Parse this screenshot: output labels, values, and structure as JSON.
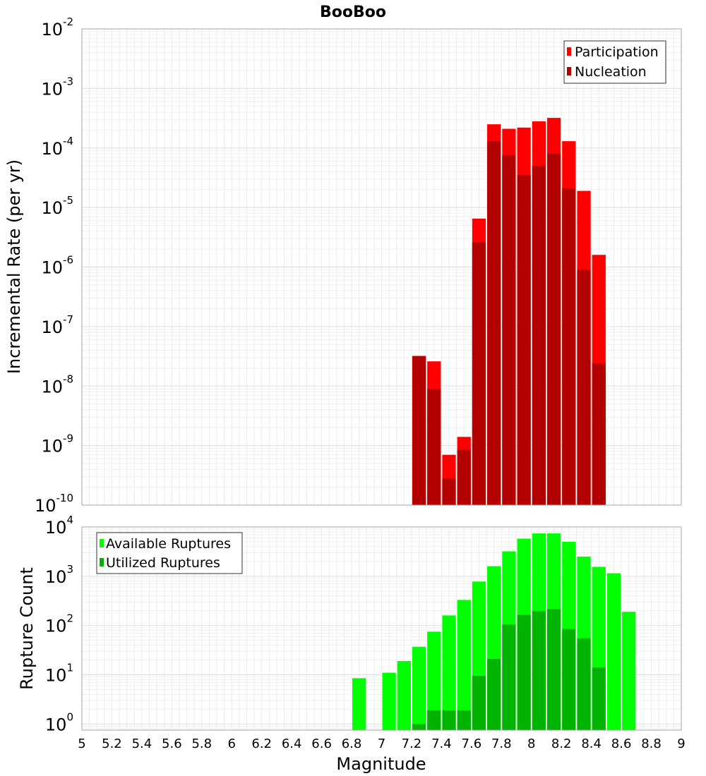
{
  "chart_data": [
    {
      "type": "bar",
      "title": "BooBoo",
      "xlabel": "",
      "ylabel": "Incremental Rate (per yr)",
      "yscale": "log",
      "xlim": [
        5,
        9
      ],
      "ylim": [
        1e-10,
        0.01
      ],
      "bar_width": 0.1,
      "legend_position": "top-right",
      "grid": true,
      "ytick_labels": [
        {
          "base": "10",
          "exp": "-10",
          "value": 1e-10
        },
        {
          "base": "10",
          "exp": "-9",
          "value": 1e-09
        },
        {
          "base": "10",
          "exp": "-8",
          "value": 1e-08
        },
        {
          "base": "10",
          "exp": "-7",
          "value": 1e-07
        },
        {
          "base": "10",
          "exp": "-6",
          "value": 1e-06
        },
        {
          "base": "10",
          "exp": "-5",
          "value": 1e-05
        },
        {
          "base": "10",
          "exp": "-4",
          "value": 0.0001
        },
        {
          "base": "10",
          "exp": "-3",
          "value": 0.001
        },
        {
          "base": "10",
          "exp": "-2",
          "value": 0.01
        }
      ],
      "x": [
        7.25,
        7.35,
        7.45,
        7.55,
        7.65,
        7.75,
        7.85,
        7.95,
        8.05,
        8.15,
        8.25,
        8.35,
        8.45
      ],
      "series": [
        {
          "name": "Participation",
          "color": "#ff0000",
          "values": [
            3.2e-08,
            2.6e-08,
            7e-10,
            1.4e-09,
            6.5e-06,
            0.00025,
            0.00021,
            0.00022,
            0.00028,
            0.00032,
            0.00013,
            1.9e-05,
            1.6e-06
          ]
        },
        {
          "name": "Nucleation",
          "color": "#b30000",
          "values": [
            3.2e-08,
            9e-09,
            2.8e-10,
            8.5e-10,
            2.6e-06,
            0.00013,
            7.5e-05,
            3.5e-05,
            5e-05,
            8e-05,
            2.1e-05,
            9e-07,
            2.4e-08
          ]
        }
      ]
    },
    {
      "type": "bar",
      "title": "",
      "xlabel": "Magnitude",
      "ylabel": "Rupture Count",
      "yscale": "log",
      "xlim": [
        5,
        9
      ],
      "ylim": [
        0.75,
        10000
      ],
      "bar_width": 0.1,
      "legend_position": "top-left",
      "grid": true,
      "ytick_labels": [
        {
          "base": "10",
          "exp": "0",
          "value": 1
        },
        {
          "base": "10",
          "exp": "1",
          "value": 10
        },
        {
          "base": "10",
          "exp": "2",
          "value": 100
        },
        {
          "base": "10",
          "exp": "3",
          "value": 1000
        },
        {
          "base": "10",
          "exp": "4",
          "value": 10000
        }
      ],
      "xtick_labels": [
        "5",
        "5.2",
        "5.4",
        "5.6",
        "5.8",
        "6",
        "6.2",
        "6.4",
        "6.6",
        "6.8",
        "7",
        "7.2",
        "7.4",
        "7.6",
        "7.8",
        "8",
        "8.2",
        "8.4",
        "8.6",
        "8.8",
        "9"
      ],
      "x": [
        6.85,
        7.05,
        7.15,
        7.25,
        7.35,
        7.45,
        7.55,
        7.65,
        7.75,
        7.85,
        7.95,
        8.05,
        8.15,
        8.25,
        8.35,
        8.45,
        8.55,
        8.65
      ],
      "series": [
        {
          "name": "Available Ruptures",
          "color": "#00ff00",
          "values": [
            8.5,
            11,
            19,
            37,
            75,
            160,
            330,
            780,
            1600,
            3200,
            5800,
            7400,
            7400,
            5000,
            2500,
            1550,
            1150,
            190
          ]
        },
        {
          "name": "Utilized Ruptures",
          "color": "#00b300",
          "values": [
            null,
            null,
            null,
            1.0,
            1.9,
            1.9,
            1.9,
            9.5,
            21,
            105,
            165,
            195,
            215,
            85,
            55,
            14,
            null,
            null
          ]
        }
      ]
    }
  ]
}
